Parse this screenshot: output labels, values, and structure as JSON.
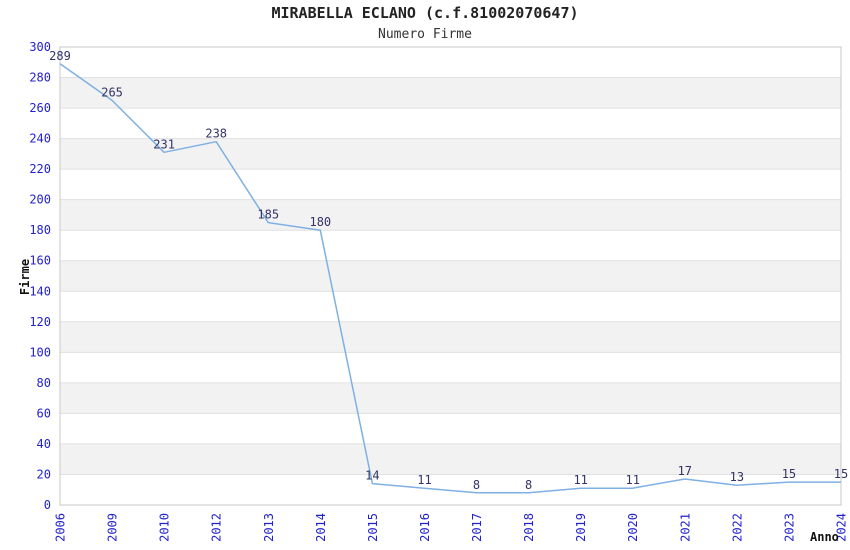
{
  "chart_data": {
    "type": "line",
    "title": "MIRABELLA ECLANO (c.f.81002070647)",
    "subtitle": "Numero Firme",
    "xlabel": "Anno",
    "ylabel": "Firme",
    "categories": [
      "2006",
      "2009",
      "2010",
      "2012",
      "2013",
      "2014",
      "2015",
      "2016",
      "2017",
      "2018",
      "2019",
      "2020",
      "2021",
      "2022",
      "2023",
      "2024"
    ],
    "values": [
      289,
      265,
      231,
      238,
      185,
      180,
      14,
      11,
      8,
      8,
      11,
      11,
      17,
      13,
      15,
      15
    ],
    "ylim": [
      0,
      300
    ],
    "ytick_step": 20,
    "grid": true,
    "plot_bands": "alternating-horizontal-every-20",
    "legend_position": "none",
    "data_labels": true,
    "markers": false
  },
  "colors": {
    "line": "#7fb0e4",
    "data_label": "#333366",
    "tick_label": "#2222cc",
    "axis_title": "#111111",
    "chart_title": "#222222",
    "band_gray": "#f2f2f2",
    "band_white": "#ffffff",
    "gridline": "#e0e0e0",
    "plot_border": "#c8c8c8",
    "background": "#ffffff"
  }
}
